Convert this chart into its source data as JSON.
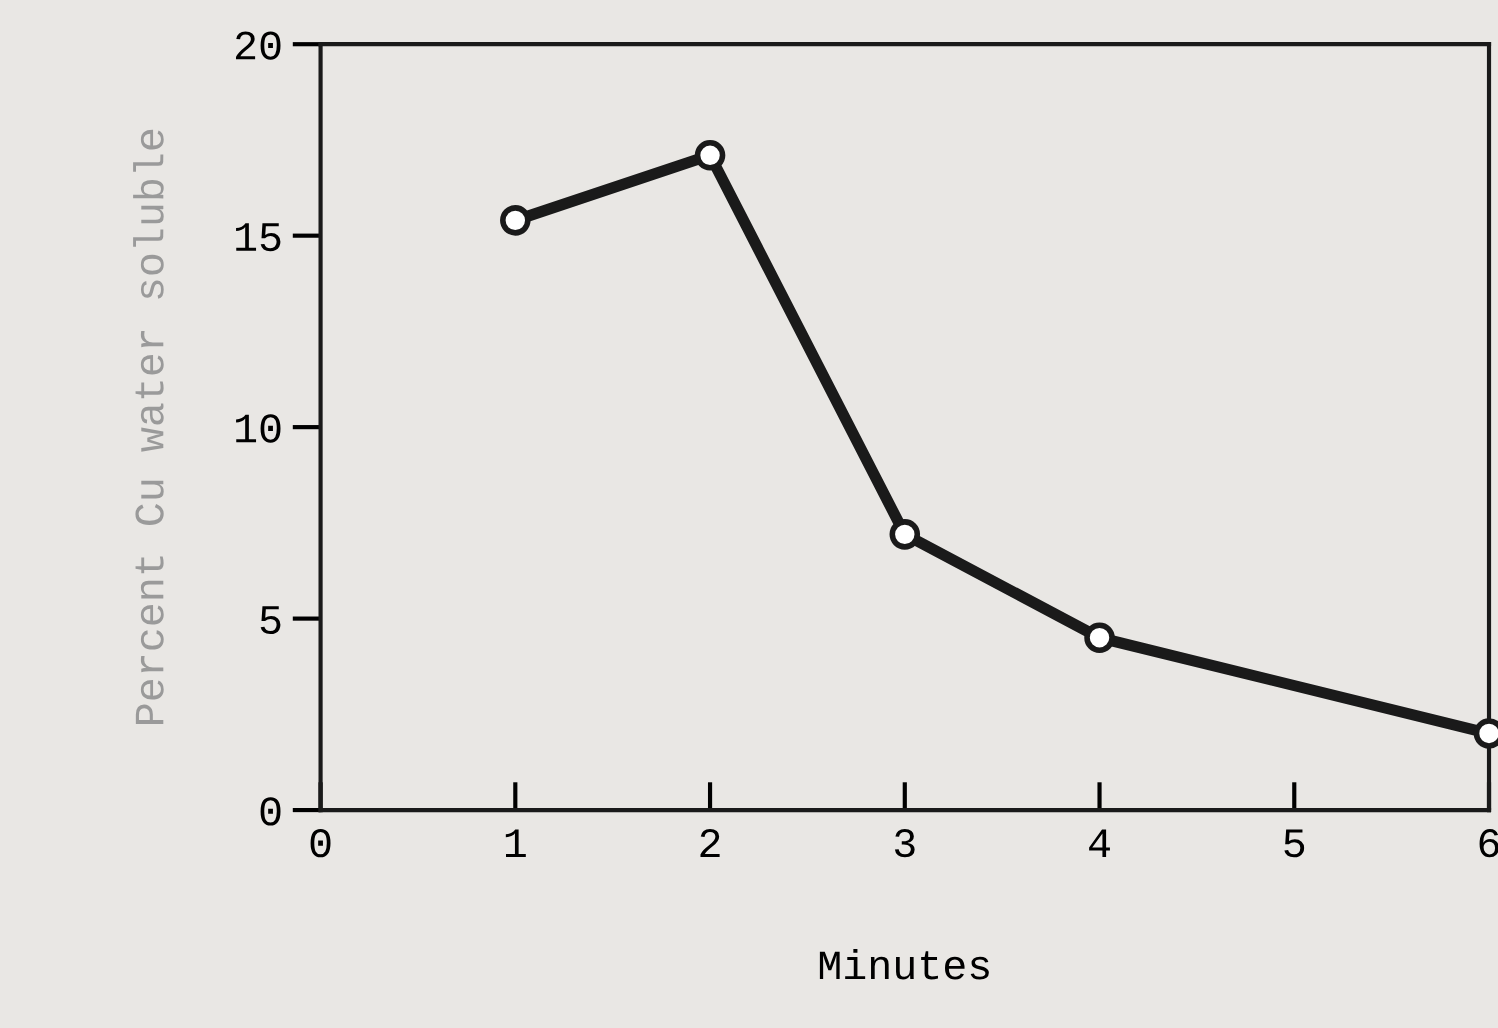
{
  "chart_data": {
    "type": "line",
    "xlabel": "Minutes",
    "ylabel": "Percent Cu water soluble",
    "x": [
      1,
      2,
      3,
      4,
      6
    ],
    "series": [
      {
        "color": "#1a1a1a",
        "values": [
          15.4,
          17.1,
          7.2,
          4.5,
          2.0
        ]
      }
    ],
    "xlim": [
      0,
      6
    ],
    "ylim": [
      0,
      20
    ],
    "xticks": [
      0,
      1,
      2,
      3,
      4,
      5,
      6
    ],
    "yticks": [
      0,
      5,
      10,
      15,
      20
    ],
    "marker": "circle",
    "line_style": "solid",
    "grid": false,
    "legend": false
  }
}
